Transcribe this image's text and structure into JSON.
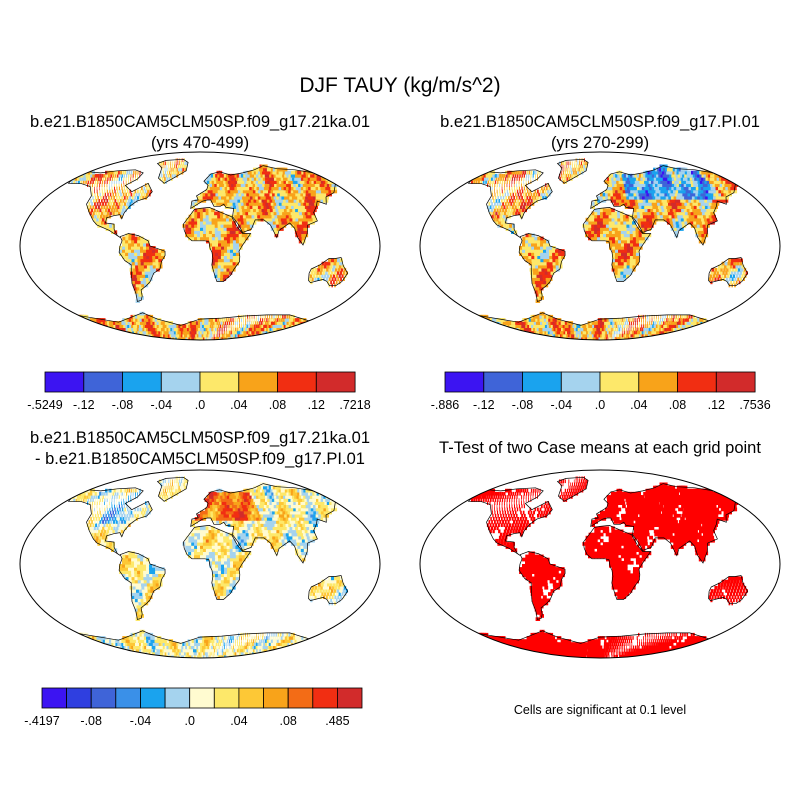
{
  "figure": {
    "title": "DJF TAUY (kg/m/s^2)",
    "note": "Cells are significant at 0.1 level"
  },
  "chart_data": [
    {
      "type": "heatmap",
      "id": "case1",
      "title": "b.e21.B1850CAM5CLM50SP.f09_g17.21ka.01",
      "subtitle": "(yrs 470-499)",
      "colorbar": {
        "labels": [
          "-.5249",
          "-.12",
          "-.08",
          "-.04",
          ".0",
          ".04",
          ".08",
          ".12",
          ".7218"
        ],
        "colors": [
          "#3c14f2",
          "#3f64d8",
          "#1aa3ee",
          "#a5d3ee",
          "#fde86a",
          "#f8a31a",
          "#f12e12",
          "#d22b2b"
        ]
      },
      "fill": "positive-bias"
    },
    {
      "type": "heatmap",
      "id": "case2",
      "title": "b.e21.B1850CAM5CLM50SP.f09_g17.PI.01",
      "subtitle": "(yrs 270-299)",
      "colorbar": {
        "labels": [
          "-.886",
          "-.12",
          "-.08",
          "-.04",
          ".0",
          ".04",
          ".08",
          ".12",
          ".7536"
        ],
        "colors": [
          "#3c14f2",
          "#3f64d8",
          "#1aa3ee",
          "#a5d3ee",
          "#fde86a",
          "#f8a31a",
          "#f12e12",
          "#d22b2b"
        ]
      },
      "fill": "positive-bias"
    },
    {
      "type": "heatmap",
      "id": "diff",
      "title": "b.e21.B1850CAM5CLM50SP.f09_g17.21ka.01",
      "subtitle": "- b.e21.B1850CAM5CLM50SP.f09_g17.PI.01",
      "colorbar": {
        "labels": [
          "-.4197",
          "",
          "-.08",
          "",
          "-.04",
          "",
          ".0",
          "",
          ".04",
          "",
          ".08",
          "",
          ".485"
        ],
        "colors": [
          "#3c14f2",
          "#2f3fe0",
          "#3f64d8",
          "#3a90e8",
          "#1aa3ee",
          "#a5d3ee",
          "#fffbd0",
          "#fde86a",
          "#fdc836",
          "#f8a31a",
          "#f36c16",
          "#f12e12",
          "#d22b2b"
        ]
      },
      "fill": "difference"
    },
    {
      "type": "heatmap",
      "id": "ttest",
      "title": "T-Test of two Case means at each grid point",
      "subtitle": "",
      "colorbar": null,
      "fill": "significance",
      "significant_color": "#ff0000"
    }
  ]
}
